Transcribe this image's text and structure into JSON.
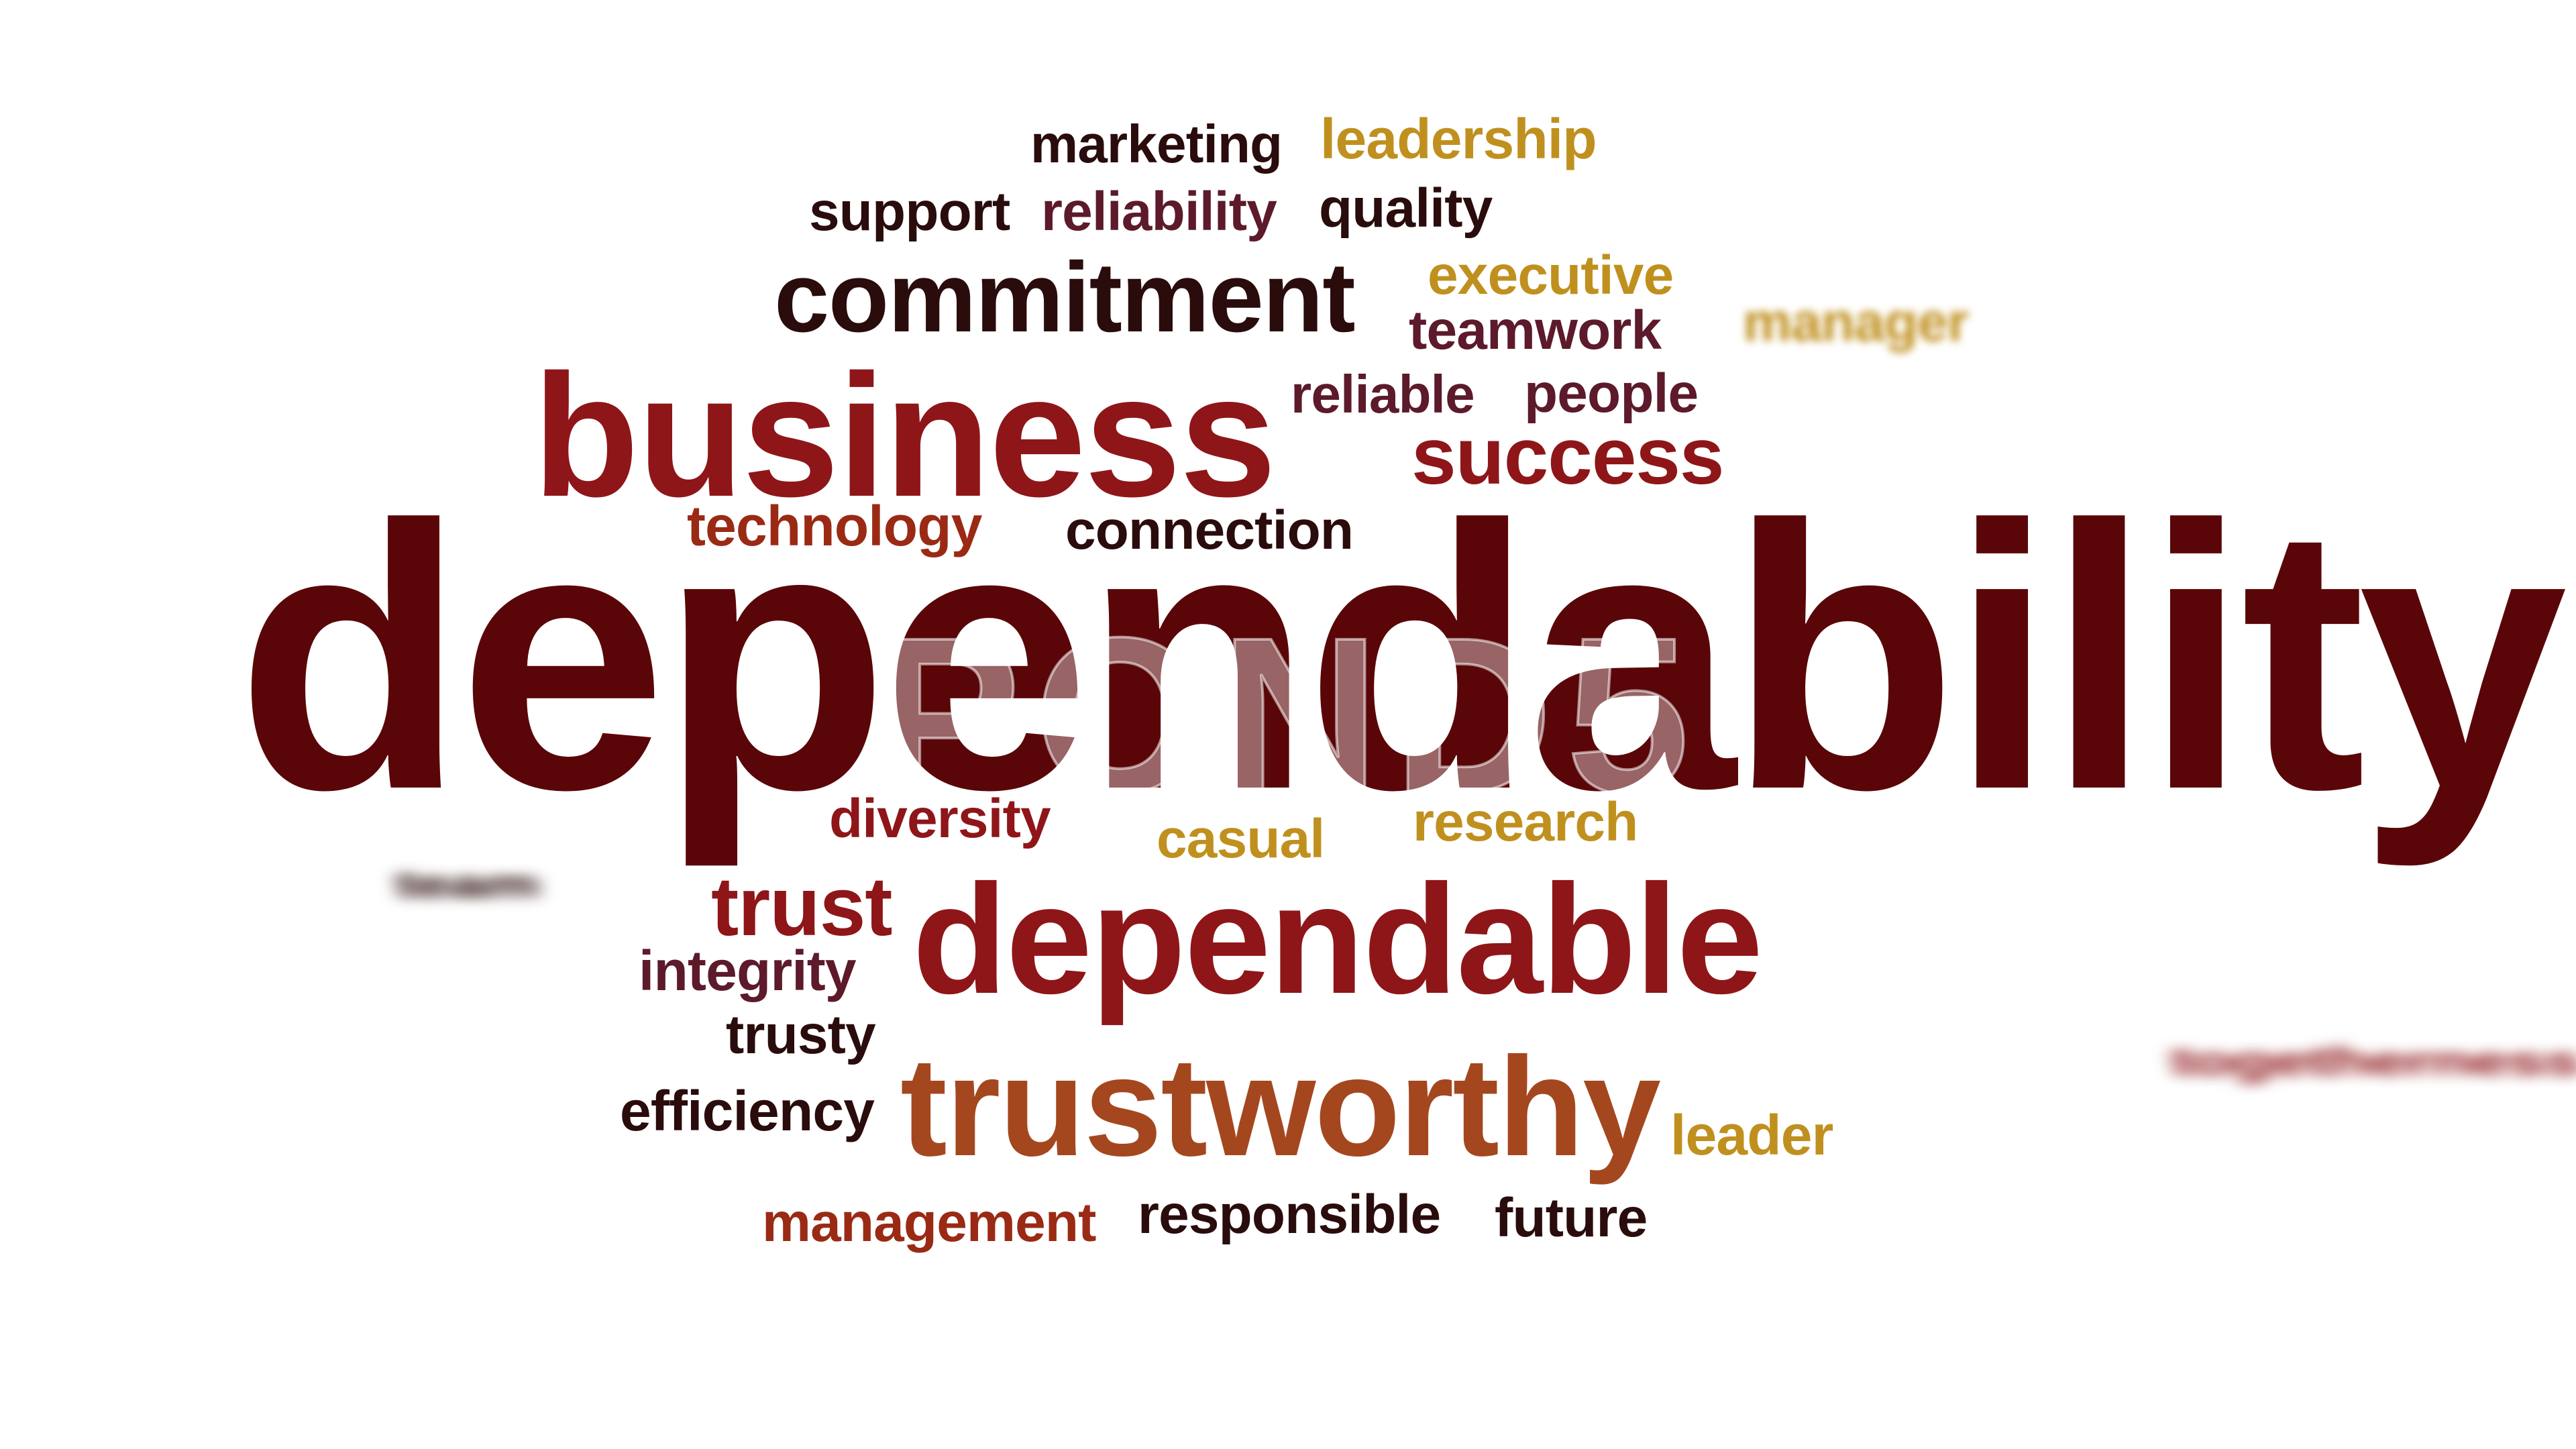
{
  "words": {
    "marketing": "marketing",
    "leadership": "leadership",
    "support": "support",
    "reliability": "reliability",
    "quality": "quality",
    "commitment": "commitment",
    "executive": "executive",
    "teamwork": "teamwork",
    "manager": "manager",
    "business": "business",
    "reliable": "reliable",
    "people": "people",
    "success": "success",
    "technology": "technology",
    "connection": "connection",
    "dependability": "dependability",
    "diversity": "diversity",
    "casual": "casual",
    "research": "research",
    "team": "team",
    "trust": "trust",
    "dependable": "dependable",
    "integrity": "integrity",
    "trusty": "trusty",
    "efficiency": "efficiency",
    "trustworthy": "trustworthy",
    "leader": "leader",
    "management": "management",
    "responsible": "responsible",
    "future": "future",
    "blurred_right": "togetherness"
  },
  "watermark": {
    "text": "POND5"
  },
  "colors": {
    "dark": "#2a0c0c",
    "maroon": "#5a0608",
    "plum": "#5c1a2a",
    "red": "#8e1619",
    "brick": "#9a2a14",
    "orange": "#a4471f",
    "gold": "#c0901f"
  }
}
